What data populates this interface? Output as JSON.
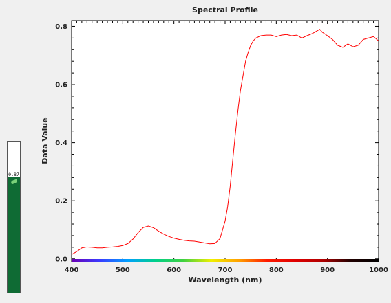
{
  "gauge": {
    "value": 0.87,
    "label": "0.87",
    "fill_color": "#0f6b34",
    "icon": "leaf-icon"
  },
  "chart_data": {
    "type": "line",
    "title": "Spectral Profile",
    "xlabel": "Wavelength (nm)",
    "ylabel": "Data Value",
    "xlim": [
      400,
      1000
    ],
    "ylim": [
      -0.01,
      0.82
    ],
    "xticks": [
      400,
      500,
      600,
      700,
      800,
      900,
      1000
    ],
    "yticks": [
      0.0,
      0.2,
      0.4,
      0.6,
      0.8
    ],
    "ytick_labels": [
      "0.0",
      "0.2",
      "0.4",
      "0.6",
      "0.8"
    ],
    "grid": false,
    "series": [
      {
        "color": "#ff0000",
        "x": [
          400,
          410,
          420,
          430,
          440,
          450,
          460,
          470,
          480,
          490,
          500,
          510,
          520,
          530,
          540,
          550,
          560,
          570,
          580,
          590,
          600,
          610,
          620,
          630,
          640,
          650,
          660,
          670,
          680,
          690,
          700,
          705,
          710,
          715,
          720,
          725,
          730,
          735,
          740,
          745,
          750,
          755,
          760,
          770,
          780,
          790,
          800,
          810,
          820,
          830,
          840,
          850,
          860,
          870,
          880,
          885,
          890,
          900,
          910,
          920,
          930,
          940,
          950,
          960,
          970,
          980,
          990,
          1000
        ],
        "y": [
          0.015,
          0.025,
          0.038,
          0.041,
          0.04,
          0.038,
          0.038,
          0.04,
          0.041,
          0.043,
          0.046,
          0.053,
          0.068,
          0.09,
          0.108,
          0.113,
          0.107,
          0.095,
          0.085,
          0.077,
          0.071,
          0.067,
          0.064,
          0.062,
          0.061,
          0.058,
          0.055,
          0.052,
          0.053,
          0.07,
          0.13,
          0.18,
          0.25,
          0.34,
          0.43,
          0.51,
          0.58,
          0.63,
          0.68,
          0.71,
          0.735,
          0.75,
          0.76,
          0.768,
          0.77,
          0.77,
          0.765,
          0.77,
          0.772,
          0.768,
          0.77,
          0.76,
          0.768,
          0.775,
          0.785,
          0.79,
          0.78,
          0.768,
          0.755,
          0.735,
          0.728,
          0.74,
          0.73,
          0.735,
          0.755,
          0.76,
          0.765,
          0.75
        ]
      }
    ],
    "spectrum_bar": {
      "colors": [
        "#6a00b5",
        "#3a3aff",
        "#00a0ff",
        "#00d08a",
        "#40d040",
        "#f0f000",
        "#ffa000",
        "#ff1a00",
        "#e00000",
        "#b00000",
        "#200000",
        "#000000"
      ]
    }
  }
}
